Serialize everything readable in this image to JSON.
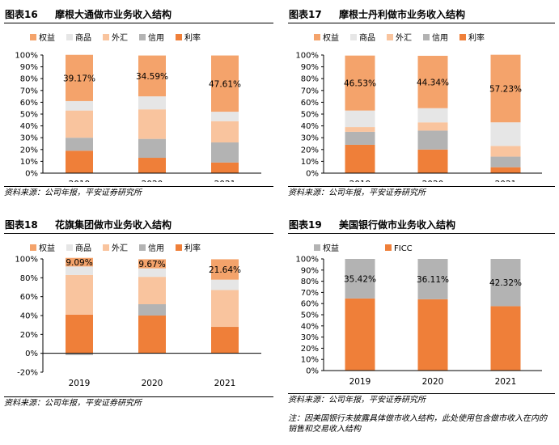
{
  "colors": {
    "equity": "#f4a36b",
    "commodities": "#e6e6e6",
    "fx": "#f9c49e",
    "credit": "#b3b3b3",
    "rates": "#ef7f39",
    "ficc": "#ef7f39",
    "equity_boa": "#b3b3b3"
  },
  "panels": [
    {
      "fig_no": "图表16",
      "title": "摩根大通做市业务收入结构",
      "source": "资料来源：公司年报，平安证券研究所",
      "chart_data": {
        "type": "bar",
        "stacked": true,
        "categories": [
          "2019",
          "2020",
          "2021"
        ],
        "ylim": [
          0,
          100
        ],
        "yticks": [
          "0%",
          "10%",
          "20%",
          "30%",
          "40%",
          "50%",
          "60%",
          "70%",
          "80%",
          "90%",
          "100%"
        ],
        "ytick_values": [
          0,
          10,
          20,
          30,
          40,
          50,
          60,
          70,
          80,
          90,
          100
        ],
        "legend": [
          "权益",
          "商品",
          "外汇",
          "信用",
          "利率"
        ],
        "series": [
          {
            "name": "利率",
            "key": "rates",
            "values": [
              19,
              13,
              9
            ]
          },
          {
            "name": "信用",
            "key": "credit",
            "values": [
              11,
              16,
              17
            ]
          },
          {
            "name": "外汇",
            "key": "fx",
            "values": [
              23,
              25,
              18
            ]
          },
          {
            "name": "商品",
            "key": "commodities",
            "values": [
              8,
              11,
              8
            ]
          },
          {
            "name": "权益",
            "key": "equity",
            "values": [
              39.17,
              34.59,
              47.61
            ]
          }
        ],
        "labels": [
          "39.17%",
          "34.59%",
          "47.61%"
        ]
      }
    },
    {
      "fig_no": "图表17",
      "title": "摩根士丹利做市业务收入结构",
      "source": "资料来源：公司年报，平安证券研究所",
      "chart_data": {
        "type": "bar",
        "stacked": true,
        "categories": [
          "2019",
          "2020",
          "2021"
        ],
        "ylim": [
          0,
          100
        ],
        "yticks": [
          "0%",
          "10%",
          "20%",
          "30%",
          "40%",
          "50%",
          "60%",
          "70%",
          "80%",
          "90%",
          "100%"
        ],
        "ytick_values": [
          0,
          10,
          20,
          30,
          40,
          50,
          60,
          70,
          80,
          90,
          100
        ],
        "legend": [
          "权益",
          "商品",
          "外汇",
          "信用",
          "利率"
        ],
        "series": [
          {
            "name": "利率",
            "key": "rates",
            "values": [
              24,
              20,
              5
            ]
          },
          {
            "name": "信用",
            "key": "credit",
            "values": [
              11,
              16,
              9
            ]
          },
          {
            "name": "外汇",
            "key": "fx",
            "values": [
              4,
              7,
              9
            ]
          },
          {
            "name": "商品",
            "key": "commodities",
            "values": [
              14,
              12,
              20
            ]
          },
          {
            "name": "权益",
            "key": "equity",
            "values": [
              46.53,
              44.34,
              57.23
            ]
          }
        ],
        "labels": [
          "46.53%",
          "44.34%",
          "57.23%"
        ]
      }
    },
    {
      "fig_no": "图表18",
      "title": "花旗集团做市业务收入结构",
      "source": "资料来源：公司年报，平安证券研究所",
      "chart_data": {
        "type": "bar",
        "stacked": true,
        "categories": [
          "2019",
          "2020",
          "2021"
        ],
        "ylim": [
          -20,
          100
        ],
        "yticks": [
          "-20%",
          "0%",
          "20%",
          "40%",
          "60%",
          "80%",
          "100%"
        ],
        "ytick_values": [
          -20,
          0,
          20,
          40,
          60,
          80,
          100
        ],
        "legend": [
          "权益",
          "商品",
          "外汇",
          "信用",
          "利率"
        ],
        "series": [
          {
            "name": "利率",
            "key": "rates",
            "values": [
              41,
              40,
              28
            ]
          },
          {
            "name": "信用",
            "key": "credit",
            "values": [
              -2,
              12,
              0
            ]
          },
          {
            "name": "外汇",
            "key": "fx",
            "values": [
              42,
              29,
              39
            ]
          },
          {
            "name": "商品",
            "key": "commodities",
            "values": [
              9,
              9,
              11
            ]
          },
          {
            "name": "权益",
            "key": "equity",
            "values": [
              9.09,
              9.67,
              21.64
            ]
          }
        ],
        "labels": [
          "9.09%",
          "9.67%",
          "21.64%"
        ]
      }
    },
    {
      "fig_no": "图表19",
      "title": "美国银行做市业务收入结构",
      "source": "资料来源：公司年报，平安证券研究所",
      "note": "注：因美国银行未披露具体做市收入结构，此处使用包含做市收入在内的销售和交易收入结构",
      "chart_data": {
        "type": "bar",
        "stacked": true,
        "categories": [
          "2019",
          "2020",
          "2021"
        ],
        "ylim": [
          0,
          100
        ],
        "yticks": [
          "0%",
          "10%",
          "20%",
          "30%",
          "40%",
          "50%",
          "60%",
          "70%",
          "80%",
          "90%",
          "100%"
        ],
        "ytick_values": [
          0,
          10,
          20,
          30,
          40,
          50,
          60,
          70,
          80,
          90,
          100
        ],
        "legend": [
          "权益",
          "FICC"
        ],
        "series": [
          {
            "name": "FICC",
            "key": "ficc",
            "values": [
              64.58,
              63.89,
              57.68
            ]
          },
          {
            "name": "权益",
            "key": "equity_boa",
            "values": [
              35.42,
              36.11,
              42.32
            ]
          }
        ],
        "labels": [
          "35.42%",
          "36.11%",
          "42.32%"
        ]
      }
    }
  ]
}
